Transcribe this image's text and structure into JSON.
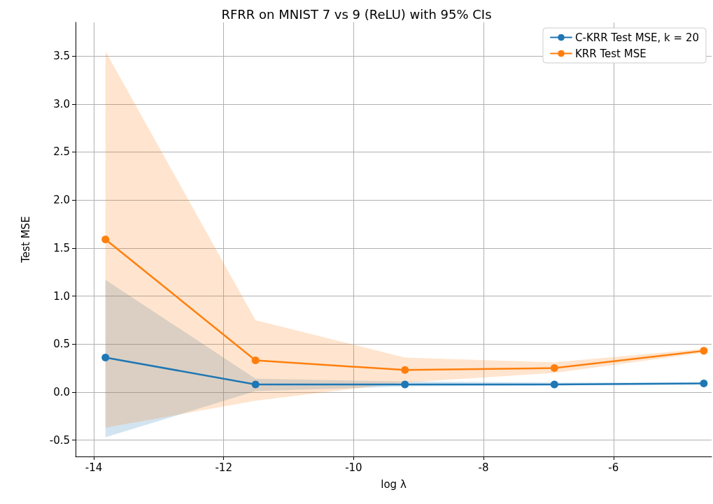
{
  "chart_data": {
    "type": "line",
    "title": "RFRR on MNIST 7 vs 9 (ReLU) with 95% CIs",
    "xlabel": "log λ",
    "ylabel": "Test MSE",
    "x": [
      -13.82,
      -11.51,
      -9.21,
      -6.91,
      -4.61
    ],
    "series": [
      {
        "name": "C-KRR Test MSE, k = 20",
        "color": "#1f77b4",
        "values": [
          0.36,
          0.08,
          0.08,
          0.08,
          0.09
        ],
        "lower": [
          -0.47,
          0.01,
          0.06,
          0.07,
          0.08
        ],
        "upper": [
          1.17,
          0.14,
          0.11,
          0.1,
          0.1
        ]
      },
      {
        "name": "KRR Test MSE",
        "color": "#ff7f0e",
        "values": [
          1.59,
          0.33,
          0.23,
          0.25,
          0.43
        ],
        "lower": [
          -0.37,
          -0.09,
          0.1,
          0.2,
          0.41
        ],
        "upper": [
          3.55,
          0.75,
          0.36,
          0.31,
          0.45
        ]
      }
    ],
    "xlim": [
      -14.28,
      -4.49
    ],
    "xticks": [
      -14,
      -12,
      -10,
      -8,
      -6
    ],
    "ylim": [
      -0.67,
      3.85
    ],
    "yticks": [
      -0.5,
      {
        "value": 0,
        "label": "0.0"
      },
      0.5,
      {
        "value": 1,
        "label": "1.0"
      },
      1.5,
      {
        "value": 2,
        "label": "2.0"
      },
      2.5,
      {
        "value": 3,
        "label": "3.0"
      },
      3.5
    ],
    "grid": true,
    "legend": "top right",
    "marker": "circle",
    "line_style": "solid"
  }
}
